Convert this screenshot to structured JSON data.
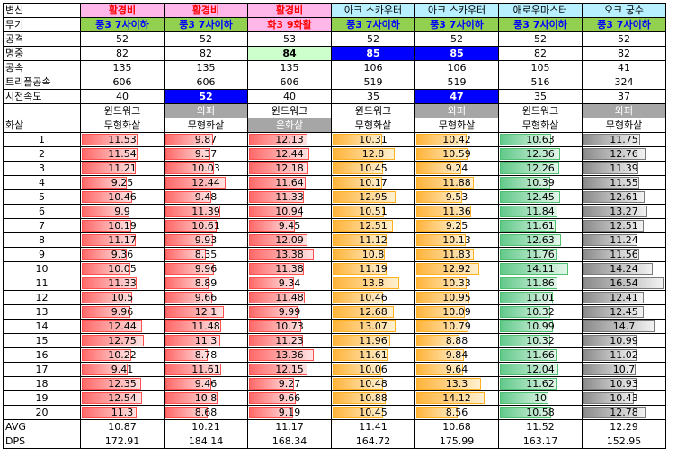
{
  "rows": [
    {
      "label": "변신",
      "cells": [
        "활경비",
        "활경비",
        "활경비",
        "아크 스카우터",
        "아크 스카우터",
        "애로우마스터",
        "오크 궁수"
      ]
    },
    {
      "label": "무기",
      "cells": [
        "풍3 7사이하",
        "풍3 7사이하",
        "화3 9화활",
        "풍3 7사이하",
        "풍3 7사이하",
        "풍3 7사이하",
        "풍3 7사이하"
      ]
    },
    {
      "label": "공격",
      "cells": [
        "52",
        "52",
        "53",
        "52",
        "52",
        "52",
        "52"
      ]
    },
    {
      "label": "명중",
      "cells": [
        "82",
        "82",
        "84",
        "85",
        "85",
        "82",
        "82"
      ]
    },
    {
      "label": "공속",
      "cells": [
        "135",
        "135",
        "135",
        "106",
        "106",
        "105",
        "41"
      ]
    },
    {
      "label": "트리플공속",
      "cells": [
        "606",
        "606",
        "606",
        "519",
        "519",
        "516",
        "324"
      ]
    },
    {
      "label": "시전속도",
      "cells": [
        "40",
        "52",
        "40",
        "35",
        "47",
        "35",
        "37"
      ]
    },
    {
      "label": "",
      "cells": [
        "윈드워크",
        "와퍼",
        "윈드워크",
        "윈드워크",
        "와퍼",
        "윈드워크",
        "와퍼"
      ]
    },
    {
      "label": "화살",
      "cells": [
        "무형화살",
        "무형화살",
        "은화살",
        "무형화살",
        "무형화살",
        "무형화살",
        "무형화살"
      ]
    }
  ],
  "shots": {
    "labels": [
      "1",
      "2",
      "3",
      "4",
      "5",
      "6",
      "7",
      "8",
      "9",
      "10",
      "11",
      "12",
      "13",
      "14",
      "15",
      "16",
      "17",
      "18",
      "19",
      "20"
    ],
    "columns": [
      [
        "11.53",
        "11.54",
        "11.21",
        "9.25",
        "10.46",
        "9.9",
        "10.19",
        "11.17",
        "9.36",
        "10.05",
        "11.33",
        "10.5",
        "9.96",
        "12.44",
        "12.75",
        "10.22",
        "9.41",
        "12.35",
        "12.54",
        "11.3"
      ],
      [
        "9.87",
        "9.37",
        "10.03",
        "12.44",
        "9.48",
        "11.39",
        "10.61",
        "9.93",
        "8.35",
        "9.96",
        "8.89",
        "9.66",
        "12.1",
        "11.48",
        "11.3",
        "8.78",
        "11.61",
        "9.46",
        "10.8",
        "8.68"
      ],
      [
        "12.13",
        "12.44",
        "12.18",
        "11.64",
        "11.33",
        "10.94",
        "9.45",
        "12.09",
        "13.38",
        "11.38",
        "9.34",
        "11.48",
        "9.99",
        "10.73",
        "11.23",
        "13.36",
        "12.15",
        "9.27",
        "9.66",
        "9.19"
      ],
      [
        "10.31",
        "12.8",
        "10.45",
        "10.17",
        "12.95",
        "10.51",
        "12.51",
        "11.12",
        "10.8",
        "11.19",
        "13.8",
        "10.46",
        "12.68",
        "13.07",
        "11.96",
        "11.61",
        "10.06",
        "10.48",
        "10.88",
        "10.45"
      ],
      [
        "10.42",
        "10.59",
        "9.24",
        "11.88",
        "9.53",
        "11.36",
        "9.25",
        "10.13",
        "11.83",
        "12.92",
        "10.33",
        "10.95",
        "10.09",
        "10.79",
        "8.88",
        "9.84",
        "9.64",
        "13.3",
        "14.12",
        "8.56"
      ],
      [
        "10.63",
        "12.36",
        "12.26",
        "10.39",
        "12.45",
        "11.84",
        "11.61",
        "12.63",
        "11.76",
        "14.11",
        "11.86",
        "11.01",
        "10.32",
        "10.99",
        "10.32",
        "11.66",
        "12.04",
        "11.62",
        "10",
        "10.58"
      ],
      [
        "11.75",
        "12.76",
        "11.39",
        "11.55",
        "12.61",
        "13.27",
        "12.51",
        "11.24",
        "11.56",
        "14.24",
        "16.54",
        "12.41",
        "12.45",
        "14.7",
        "10.99",
        "11.02",
        "10.7",
        "10.93",
        "10.43",
        "12.78"
      ]
    ]
  },
  "summary": [
    {
      "label": "AVG",
      "cells": [
        "10.87",
        "10.21",
        "11.17",
        "11.41",
        "10.68",
        "11.52",
        "12.29"
      ]
    },
    {
      "label": "DPS",
      "cells": [
        "172.91",
        "184.14",
        "168.34",
        "164.72",
        "175.99",
        "163.17",
        "152.95"
      ]
    }
  ],
  "colors": {
    "header_pink": "#ffb6e8",
    "header_cyan": "#b8f0ff",
    "weapon_green": "#92d050",
    "highlight_blue": "#0000ff",
    "highlight_light_green": "#ccffcc",
    "accessory_gray": "#a6a6a6",
    "bar_red": "#ff5050",
    "bar_orange": "#ffb020",
    "bar_green": "#50c070",
    "bar_gray": "#7a7a7a"
  }
}
